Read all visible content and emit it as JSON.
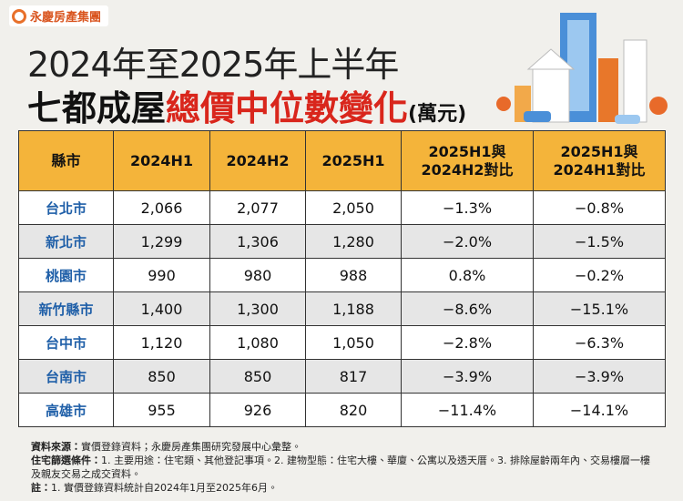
{
  "logo": {
    "text": "永慶房產集團"
  },
  "header": {
    "title_line1": "2024年至2025年上半年",
    "title_prefix": "七都成屋",
    "title_highlight": "總價中位數變化",
    "title_unit": "(萬元)"
  },
  "table": {
    "columns": [
      "縣市",
      "2024H1",
      "2024H2",
      "2025H1",
      "2025H1與\n2024H2對比",
      "2025H1與\n2024H1對比"
    ],
    "rows": [
      [
        "台北市",
        "2,066",
        "2,077",
        "2,050",
        "−1.3%",
        "−0.8%"
      ],
      [
        "新北市",
        "1,299",
        "1,306",
        "1,280",
        "−2.0%",
        "−1.5%"
      ],
      [
        "桃園市",
        "990",
        "980",
        "988",
        "0.8%",
        "−0.2%"
      ],
      [
        "新竹縣市",
        "1,400",
        "1,300",
        "1,188",
        "−8.6%",
        "−15.1%"
      ],
      [
        "台中市",
        "1,120",
        "1,080",
        "1,050",
        "−2.8%",
        "−6.3%"
      ],
      [
        "台南市",
        "850",
        "850",
        "817",
        "−3.9%",
        "−3.9%"
      ],
      [
        "高雄市",
        "955",
        "926",
        "820",
        "−11.4%",
        "−14.1%"
      ]
    ]
  },
  "notes": [
    {
      "label": "資料來源：",
      "text": "實價登錄資料；永慶房產集團研究發展中心彙整。"
    },
    {
      "label": "住宅篩選條件：",
      "text": "1. 主要用途：住宅類、其他登記事項。2. 建物型態：住宅大樓、華廈、公寓以及透天厝。3. 排除屋齡兩年內、交易樓層一樓及親友交易之成交資料。"
    },
    {
      "label": "註：",
      "text": "1. 實價登錄資料統計自2024年1月至2025年6月。"
    }
  ]
}
